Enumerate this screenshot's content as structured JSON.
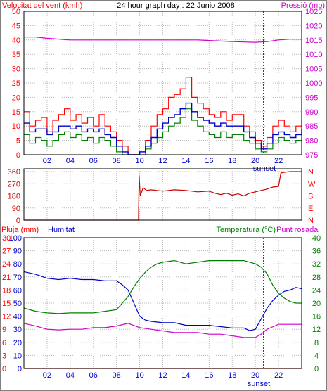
{
  "colors": {
    "red": "#ff0000",
    "darkred": "#cc0000",
    "green": "#008000",
    "blue": "#0000cc",
    "magenta": "#d000d0",
    "grid": "#b8b8b8",
    "axis": "#000000",
    "frame": "#808080"
  },
  "hour_ticks": [
    "02",
    "04",
    "06",
    "08",
    "10",
    "12",
    "14",
    "16",
    "18",
    "20",
    "22"
  ],
  "sunset_label": "sunset",
  "chart_data": [
    {
      "type": "line",
      "panel": "wind-pressure",
      "title": "24 hour graph day : 22 Junio 2008",
      "left_axis_label": "Velocitat del vent (kmh)",
      "right_axis_label": "Pressió (mb)",
      "left_ticks": [
        "0",
        "5",
        "10",
        "15",
        "20",
        "25",
        "30",
        "35",
        "40",
        "45",
        "50"
      ],
      "right_ticks": [
        "975",
        "980",
        "985",
        "990",
        "995",
        "1000",
        "1005",
        "1010",
        "1015",
        "1020",
        "1025"
      ],
      "ylim_left": [
        0,
        50
      ],
      "ylim_right": [
        975,
        1025
      ],
      "xlim_hours": [
        0,
        24
      ],
      "sunset_hour": 20.7,
      "series": [
        {
          "key": "gust",
          "color": "red",
          "axis": "left",
          "x": [
            0,
            0.5,
            1,
            1.5,
            2,
            2.5,
            3,
            3.5,
            4,
            4.5,
            5,
            5.5,
            6,
            6.5,
            7,
            7.5,
            8,
            8.5,
            9,
            9.5,
            10,
            10.5,
            11,
            11.5,
            12,
            12.5,
            13,
            13.5,
            14,
            14.5,
            15,
            15.5,
            16,
            16.5,
            17,
            17.5,
            18,
            18.5,
            19,
            19.5,
            20,
            20.5,
            21,
            21.5,
            22,
            22.5,
            23,
            23.5,
            24
          ],
          "y": [
            15,
            10,
            12,
            13,
            8,
            12,
            14,
            16,
            12,
            14,
            11,
            13,
            10,
            14,
            10,
            8,
            5,
            3,
            0,
            0,
            1,
            5,
            10,
            14,
            16,
            20,
            21,
            23,
            27,
            20,
            18,
            16,
            14,
            13,
            15,
            12,
            14,
            14,
            10,
            8,
            5,
            3,
            6,
            10,
            12,
            10,
            8,
            10,
            12
          ]
        },
        {
          "key": "wind",
          "color": "green",
          "axis": "left",
          "x": [
            0,
            0.5,
            1,
            1.5,
            2,
            2.5,
            3,
            3.5,
            4,
            4.5,
            5,
            5.5,
            6,
            6.5,
            7,
            7.5,
            8,
            8.5,
            9,
            9.5,
            10,
            10.5,
            11,
            11.5,
            12,
            12.5,
            13,
            13.5,
            14,
            14.5,
            15,
            15.5,
            16,
            16.5,
            17,
            17.5,
            18,
            18.5,
            19,
            19.5,
            20,
            20.5,
            21,
            21.5,
            22,
            22.5,
            23,
            23.5,
            24
          ],
          "y": [
            7,
            4,
            6,
            5,
            3,
            5,
            7,
            8,
            6,
            7,
            5,
            6,
            4,
            6,
            5,
            3,
            1,
            0,
            0,
            0,
            0,
            2,
            4,
            6,
            8,
            10,
            11,
            13,
            16,
            12,
            10,
            8,
            7,
            6,
            8,
            6,
            7,
            7,
            5,
            4,
            2,
            1,
            2,
            4,
            6,
            5,
            4,
            5,
            6
          ]
        },
        {
          "key": "avg-wind",
          "color": "blue",
          "axis": "left",
          "x": [
            0,
            0.5,
            1,
            1.5,
            2,
            2.5,
            3,
            3.5,
            4,
            4.5,
            5,
            5.5,
            6,
            6.5,
            7,
            7.5,
            8,
            8.5,
            9,
            9.5,
            10,
            10.5,
            11,
            11.5,
            12,
            12.5,
            13,
            13.5,
            14,
            14.5,
            15,
            15.5,
            16,
            16.5,
            17,
            17.5,
            18,
            18.5,
            19,
            19.5,
            20,
            20.5,
            21,
            21.5,
            22,
            22.5,
            23,
            23.5,
            24
          ],
          "y": [
            11,
            8,
            9,
            9,
            7,
            8,
            10,
            10,
            9,
            10,
            8,
            9,
            8,
            9,
            7,
            6,
            3,
            1,
            0,
            0,
            1,
            3,
            6,
            9,
            11,
            13,
            14,
            16,
            18,
            15,
            13,
            12,
            11,
            10,
            11,
            10,
            10,
            10,
            8,
            6,
            4,
            2,
            4,
            7,
            8,
            7,
            6,
            7,
            9
          ]
        },
        {
          "key": "pressure",
          "color": "magenta",
          "axis": "right",
          "x": [
            0,
            1,
            2,
            3,
            4,
            5,
            6,
            7,
            8,
            9,
            10,
            11,
            12,
            13,
            14,
            15,
            16,
            17,
            18,
            19,
            20,
            21,
            22,
            23,
            24
          ],
          "y": [
            1016,
            1016,
            1015.6,
            1015.3,
            1015,
            1015,
            1015,
            1015,
            1015,
            1015,
            1015,
            1015,
            1015,
            1015,
            1015,
            1015,
            1014.8,
            1014.6,
            1014.4,
            1014.3,
            1014.2,
            1014.4,
            1015,
            1015.3,
            1015.3
          ]
        }
      ]
    },
    {
      "type": "line",
      "panel": "wind-direction",
      "left_ticks": [
        "0",
        "90",
        "180",
        "270",
        "360"
      ],
      "right_ticks": [
        "N",
        "E",
        "S",
        "W",
        "N"
      ],
      "ylim": [
        0,
        360
      ],
      "xlim_hours": [
        0,
        24
      ],
      "series": [
        {
          "key": "direction",
          "color": "darkred",
          "x": [
            0,
            9.9,
            9.95,
            10.05,
            10.3,
            10.6,
            11,
            12,
            13,
            14,
            15,
            16,
            16.5,
            17,
            17.5,
            18,
            18.5,
            19,
            19.5,
            20,
            20.5,
            21,
            21.5,
            22,
            22.2,
            22.5,
            23,
            24
          ],
          "y": [
            0,
            0,
            330,
            180,
            240,
            220,
            225,
            215,
            225,
            220,
            210,
            215,
            200,
            190,
            200,
            185,
            195,
            180,
            200,
            210,
            220,
            230,
            245,
            250,
            350,
            355,
            360,
            360
          ]
        }
      ]
    },
    {
      "type": "line",
      "panel": "rain-humidity-temp",
      "left_axis_label": "Pluja (mm)",
      "humidity_axis_label": "Humitat",
      "right_axis_label_a": "Temperatura (°C)",
      "right_axis_label_b": "Punt rosada",
      "rain_ticks": [
        "0",
        "3",
        "6",
        "9",
        "12",
        "15",
        "18",
        "21",
        "24",
        "27",
        "30"
      ],
      "humidity_ticks": [
        "0",
        "10",
        "20",
        "30",
        "40",
        "50",
        "60",
        "70",
        "80",
        "90",
        "100"
      ],
      "temp_ticks": [
        "0",
        "4",
        "8",
        "12",
        "16",
        "20",
        "24",
        "28",
        "32",
        "36",
        "40"
      ],
      "ylim_rain": [
        0,
        30
      ],
      "ylim_humidity": [
        0,
        100
      ],
      "ylim_temp": [
        0,
        40
      ],
      "xlim_hours": [
        0,
        24
      ],
      "sunset_hour": 20.7,
      "series": [
        {
          "key": "humidity",
          "color": "blue",
          "axis": "humidity",
          "x": [
            0,
            1,
            2,
            3,
            4,
            5,
            6,
            7,
            8,
            8.5,
            9,
            9.5,
            10,
            10.5,
            11,
            12,
            13,
            14,
            15,
            16,
            17,
            18,
            19,
            19.5,
            20,
            20.5,
            21,
            21.5,
            22,
            22.5,
            23,
            23.5,
            24
          ],
          "y": [
            74,
            72,
            69,
            68,
            69,
            68,
            68,
            67,
            67,
            64,
            60,
            50,
            40,
            37,
            36,
            35,
            35,
            33,
            33,
            33,
            32,
            31,
            31,
            29,
            30,
            38,
            46,
            52,
            56,
            59,
            60,
            62,
            61
          ]
        },
        {
          "key": "temperature",
          "color": "green",
          "axis": "temp",
          "x": [
            0,
            1,
            2,
            3,
            4,
            5,
            6,
            7,
            8,
            8.5,
            9,
            9.5,
            10,
            10.5,
            11,
            11.5,
            12,
            13,
            14,
            15,
            16,
            17,
            18,
            19,
            20,
            20.5,
            21,
            21.5,
            22,
            22.5,
            23,
            23.5,
            24
          ],
          "y": [
            18.5,
            17.5,
            17,
            16.8,
            17,
            17,
            17,
            17.5,
            18,
            20,
            22,
            25,
            27.5,
            29.5,
            31,
            32,
            32.5,
            33,
            32,
            32.5,
            33,
            33,
            33,
            33,
            32,
            31,
            29,
            25.5,
            23,
            21.5,
            20.5,
            20,
            20
          ]
        },
        {
          "key": "dewpoint",
          "color": "magenta",
          "axis": "temp",
          "x": [
            0,
            1,
            2,
            3,
            4,
            5,
            6,
            7,
            8,
            9,
            10,
            11,
            12,
            13,
            14,
            15,
            16,
            17,
            18,
            19,
            20,
            20.5,
            21,
            22,
            23,
            24
          ],
          "y": [
            13.8,
            13,
            12,
            11.8,
            12,
            12,
            12.5,
            12.5,
            13,
            13.8,
            12.5,
            12,
            11.5,
            11,
            11,
            11,
            10.5,
            10.5,
            10,
            9.5,
            9.5,
            10.5,
            12,
            13.5,
            13.5,
            13.5
          ]
        },
        {
          "key": "rain",
          "color": "red",
          "axis": "rain",
          "x": [
            0,
            24
          ],
          "y": [
            0,
            0
          ]
        }
      ]
    }
  ]
}
